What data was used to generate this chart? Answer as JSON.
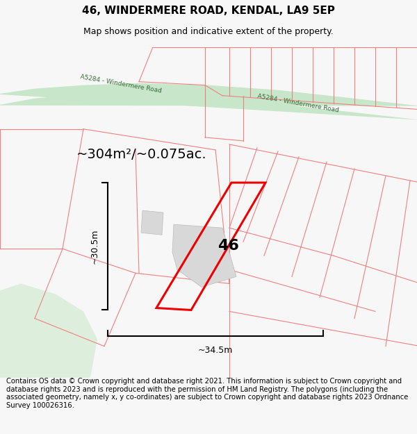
{
  "title": "46, WINDERMERE ROAD, KENDAL, LA9 5EP",
  "subtitle": "Map shows position and indicative extent of the property.",
  "footer": "Contains OS data © Crown copyright and database right 2021. This information is subject to Crown copyright and database rights 2023 and is reproduced with the permission of HM Land Registry. The polygons (including the associated geometry, namely x, y co-ordinates) are subject to Crown copyright and database rights 2023 Ordnance Survey 100026316.",
  "area_label": "~304m²/~0.075ac.",
  "dim_width": "~34.5m",
  "dim_height": "~30.5m",
  "plot_number": "46",
  "bg_color": "#f7f7f7",
  "map_bg": "#ffffff",
  "road_fill": "#c8e6c9",
  "plot_outline_color": "#ee0000",
  "building_fill": "#d8d8d8",
  "building_stroke": "#bbbbbb",
  "cadastral_color": "#f08080",
  "title_fontsize": 11,
  "subtitle_fontsize": 9,
  "footer_fontsize": 7.2
}
